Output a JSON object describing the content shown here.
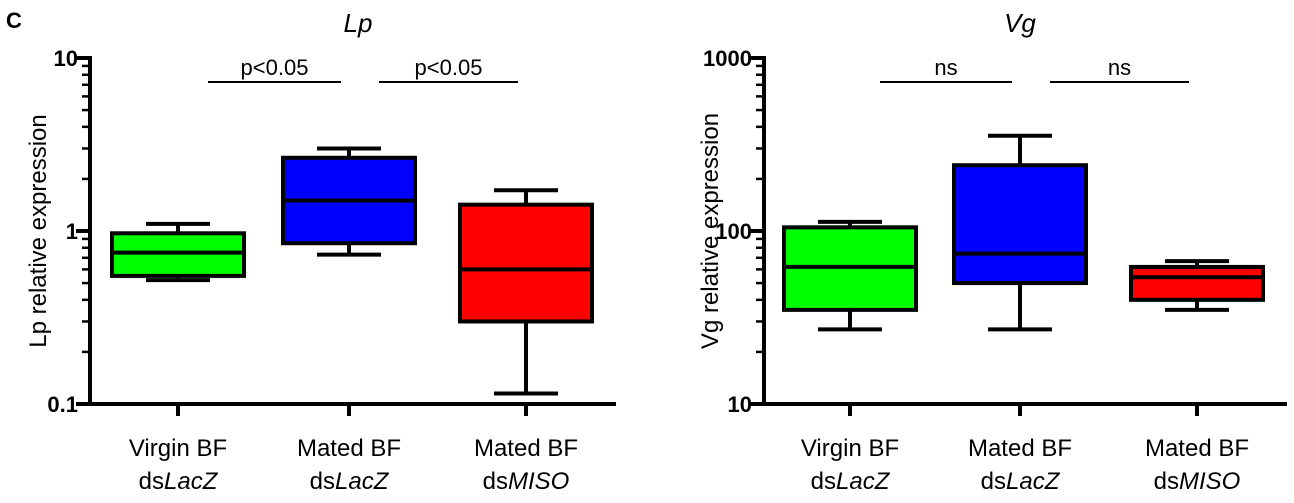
{
  "panel_label": "C",
  "chart_data": [
    {
      "type": "box",
      "title": "Lp",
      "ylabel": "Lp relative expression",
      "xlabel": "",
      "yscale": "log",
      "ylim": [
        0.1,
        10
      ],
      "yticks": [
        "0.1",
        "1",
        "10"
      ],
      "categories": [
        {
          "line1": "Virgin BF",
          "prefix": "ds",
          "gene": "LacZ"
        },
        {
          "line1": "Mated BF",
          "prefix": "ds",
          "gene": "LacZ"
        },
        {
          "line1": "Mated BF",
          "prefix": "ds",
          "gene": "MISO"
        }
      ],
      "boxes": [
        {
          "min": 0.52,
          "q1": 0.55,
          "median": 0.75,
          "q3": 0.97,
          "max": 1.1,
          "color": "#00ff00"
        },
        {
          "min": 0.73,
          "q1": 0.85,
          "median": 1.5,
          "q3": 2.65,
          "max": 3.0,
          "color": "#0000ff"
        },
        {
          "min": 0.115,
          "q1": 0.3,
          "median": 0.6,
          "q3": 1.42,
          "max": 1.72,
          "color": "#ff0000"
        }
      ],
      "comparisons": [
        {
          "from": 0,
          "to": 1,
          "label": "p<0.05"
        },
        {
          "from": 1,
          "to": 2,
          "label": "p<0.05"
        }
      ]
    },
    {
      "type": "box",
      "title": "Vg",
      "ylabel": "Vg  relative expression",
      "xlabel": "",
      "yscale": "log",
      "ylim": [
        10,
        1000
      ],
      "yticks": [
        "10",
        "100",
        "1000"
      ],
      "categories": [
        {
          "line1": "Virgin BF",
          "prefix": "ds",
          "gene": "LacZ"
        },
        {
          "line1": "Mated BF",
          "prefix": "ds",
          "gene": "LacZ"
        },
        {
          "line1": "Mated BF",
          "prefix": "ds",
          "gene": "MISO"
        }
      ],
      "boxes": [
        {
          "min": 27,
          "q1": 35,
          "median": 62,
          "q3": 105,
          "max": 113,
          "color": "#00ff00"
        },
        {
          "min": 27,
          "q1": 50,
          "median": 74,
          "q3": 240,
          "max": 355,
          "color": "#0000ff"
        },
        {
          "min": 35,
          "q1": 40,
          "median": 54,
          "q3": 62,
          "max": 67,
          "color": "#ff0000"
        }
      ],
      "comparisons": [
        {
          "from": 0,
          "to": 1,
          "label": "ns"
        },
        {
          "from": 1,
          "to": 2,
          "label": "ns"
        }
      ]
    }
  ]
}
